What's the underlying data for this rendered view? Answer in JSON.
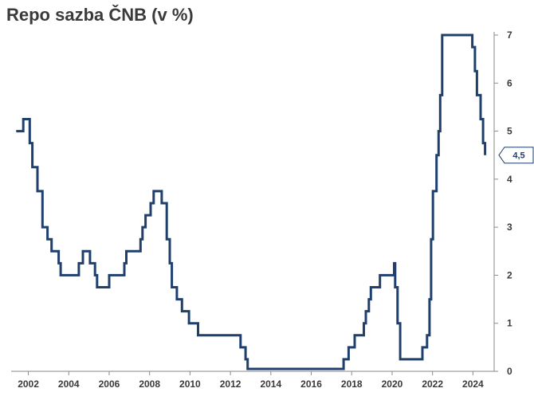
{
  "chart_data": {
    "type": "line",
    "title": "Repo sazba ČNB (v %)",
    "xlabel": "",
    "ylabel": "",
    "xlim": [
      2001.15,
      2025.05
    ],
    "ylim": [
      0,
      7
    ],
    "y_axis_position": "right",
    "grid": false,
    "x_ticks": [
      2002,
      2004,
      2006,
      2008,
      2010,
      2012,
      2014,
      2016,
      2018,
      2020,
      2022,
      2024
    ],
    "x_tick_labels": [
      "2002",
      "2004",
      "2006",
      "2008",
      "2010",
      "2012",
      "2014",
      "2016",
      "2018",
      "2020",
      "2022",
      "2024"
    ],
    "y_ticks": [
      0,
      1,
      2,
      3,
      4,
      5,
      6,
      7
    ],
    "y_tick_labels": [
      "0",
      "1",
      "2",
      "3",
      "4",
      "5",
      "6",
      "7"
    ],
    "last_value_label": "4,5",
    "series_color": "#1f3f6d",
    "series": [
      {
        "step": true,
        "points": [
          [
            2001.4,
            5.0
          ],
          [
            2001.75,
            5.25
          ],
          [
            2002.07,
            4.75
          ],
          [
            2002.2,
            4.25
          ],
          [
            2002.45,
            3.75
          ],
          [
            2002.7,
            3.0
          ],
          [
            2002.95,
            2.75
          ],
          [
            2003.15,
            2.5
          ],
          [
            2003.5,
            2.25
          ],
          [
            2003.6,
            2.0
          ],
          [
            2004.5,
            2.25
          ],
          [
            2004.7,
            2.5
          ],
          [
            2005.05,
            2.25
          ],
          [
            2005.3,
            2.0
          ],
          [
            2005.4,
            1.75
          ],
          [
            2006.0,
            2.0
          ],
          [
            2006.75,
            2.25
          ],
          [
            2006.85,
            2.5
          ],
          [
            2007.55,
            2.75
          ],
          [
            2007.65,
            3.0
          ],
          [
            2007.8,
            3.25
          ],
          [
            2008.05,
            3.5
          ],
          [
            2008.2,
            3.75
          ],
          [
            2008.6,
            3.5
          ],
          [
            2008.85,
            2.75
          ],
          [
            2009.0,
            2.25
          ],
          [
            2009.1,
            1.75
          ],
          [
            2009.35,
            1.5
          ],
          [
            2009.6,
            1.25
          ],
          [
            2009.95,
            1.0
          ],
          [
            2010.4,
            0.75
          ],
          [
            2012.5,
            0.5
          ],
          [
            2012.75,
            0.25
          ],
          [
            2012.85,
            0.05
          ],
          [
            2017.6,
            0.25
          ],
          [
            2017.85,
            0.5
          ],
          [
            2018.15,
            0.75
          ],
          [
            2018.6,
            1.0
          ],
          [
            2018.7,
            1.25
          ],
          [
            2018.85,
            1.5
          ],
          [
            2018.95,
            1.75
          ],
          [
            2019.4,
            2.0
          ],
          [
            2020.1,
            2.25
          ],
          [
            2020.15,
            1.75
          ],
          [
            2020.27,
            1.0
          ],
          [
            2020.4,
            0.25
          ],
          [
            2021.5,
            0.5
          ],
          [
            2021.73,
            0.75
          ],
          [
            2021.85,
            1.5
          ],
          [
            2021.93,
            2.75
          ],
          [
            2022.02,
            3.75
          ],
          [
            2022.2,
            4.5
          ],
          [
            2022.3,
            5.0
          ],
          [
            2022.38,
            5.75
          ],
          [
            2022.48,
            7.0
          ],
          [
            2023.97,
            6.75
          ],
          [
            2024.1,
            6.25
          ],
          [
            2024.2,
            5.75
          ],
          [
            2024.38,
            5.25
          ],
          [
            2024.5,
            4.75
          ],
          [
            2024.6,
            4.5
          ]
        ]
      }
    ]
  }
}
